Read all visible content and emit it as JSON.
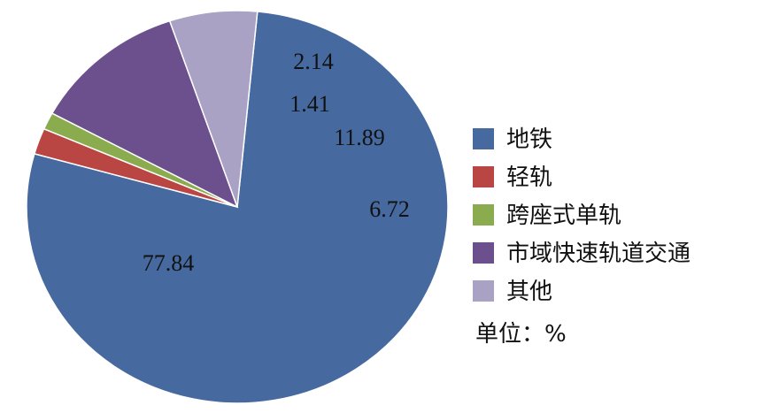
{
  "chart_data": {
    "type": "pie",
    "slices": [
      {
        "label": "地铁",
        "value": 77.84,
        "value_label": "77.84",
        "color": "#46699f"
      },
      {
        "label": "轻轨",
        "value": 2.14,
        "value_label": "2.14",
        "color": "#b94643"
      },
      {
        "label": "跨座式单轨",
        "value": 1.41,
        "value_label": "1.41",
        "color": "#8aac4f"
      },
      {
        "label": "市域快速轨道交通",
        "value": 11.89,
        "value_label": "11.89",
        "color": "#6c4f8d"
      },
      {
        "label": "其他",
        "value": 6.72,
        "value_label": "6.72",
        "color": "#a9a2c5"
      }
    ],
    "unit": "单位：%",
    "legend_position": "right"
  }
}
